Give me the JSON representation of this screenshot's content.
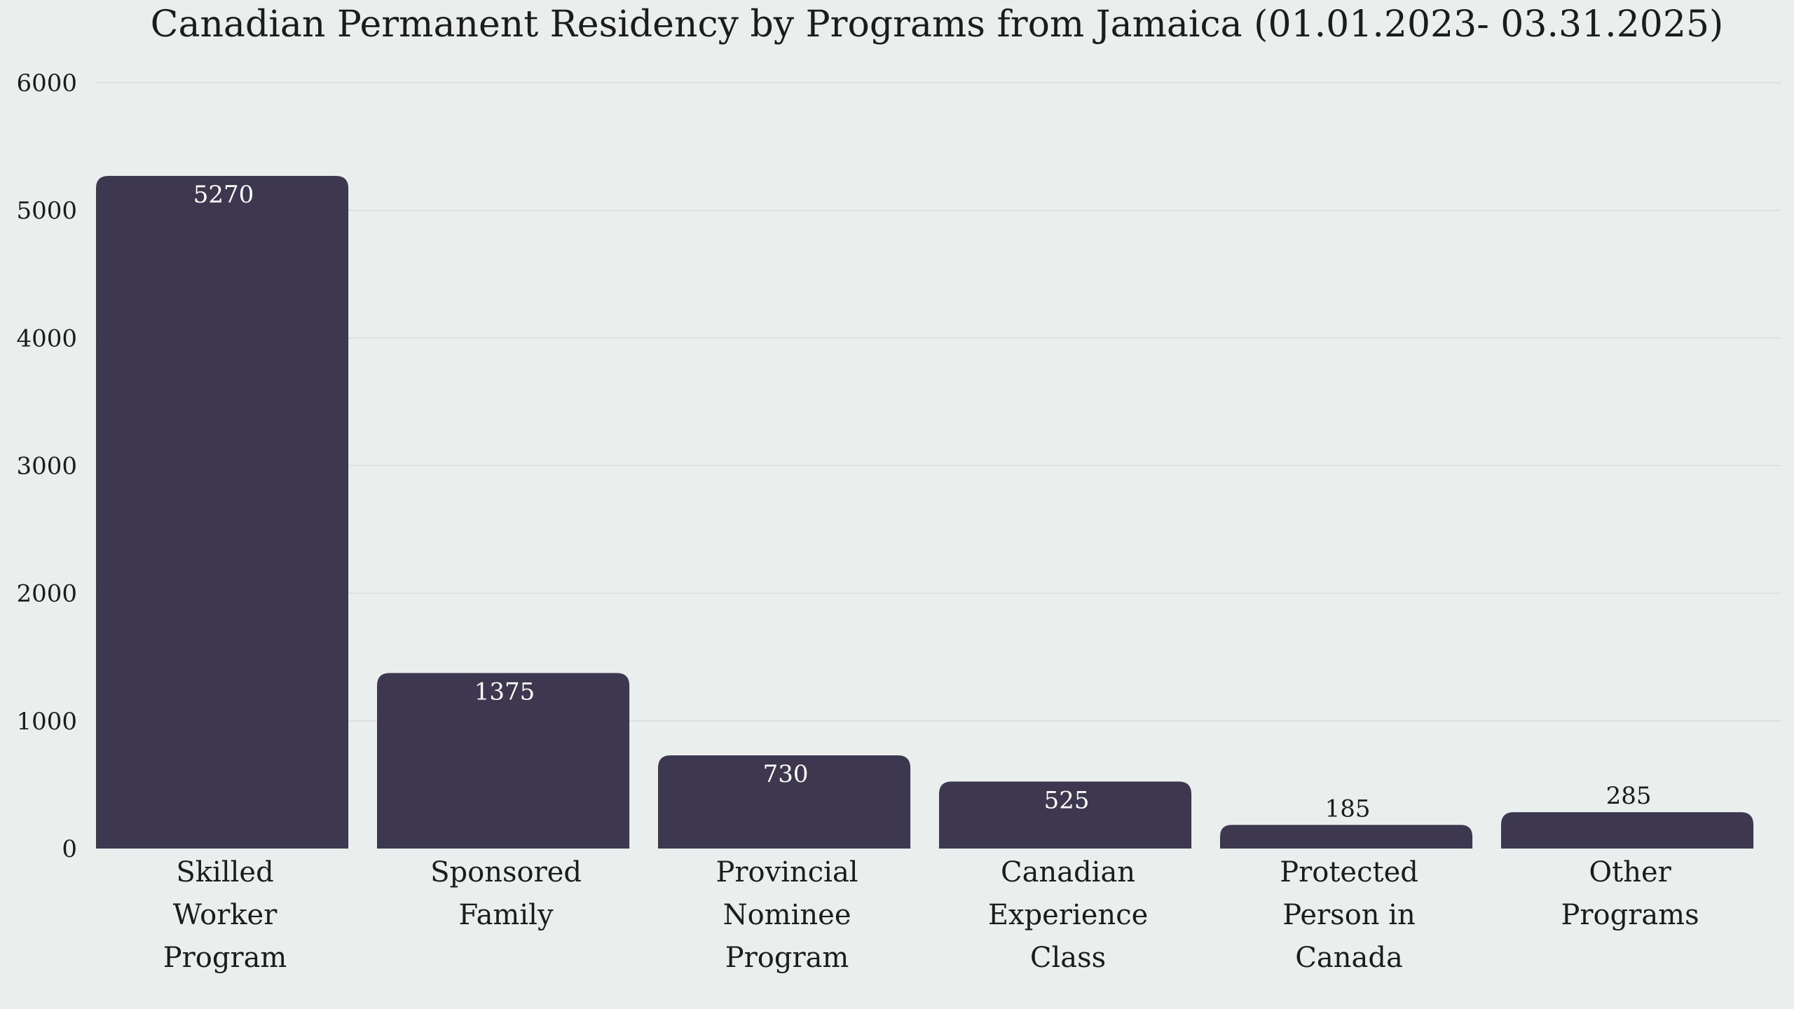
{
  "chart_data": {
    "type": "bar",
    "title": "Canadian Permanent Residency by Programs from Jamaica (01.01.2023- 03.31.2025)",
    "xlabel": "",
    "ylabel": "",
    "categories": [
      "Skilled Worker Program",
      "Sponsored Family",
      "Provincial Nominee Program",
      "Canadian Experience Class",
      "Protected Person in Canada",
      "Other Programs"
    ],
    "category_lines": [
      [
        "Skilled",
        "Worker",
        "Program"
      ],
      [
        "Sponsored",
        "Family"
      ],
      [
        "Provincial",
        "Nominee",
        "Program"
      ],
      [
        "Canadian",
        "Experience",
        "Class"
      ],
      [
        "Protected",
        "Person in",
        "Canada"
      ],
      [
        "Other",
        "Programs"
      ]
    ],
    "values": [
      5270,
      1375,
      730,
      525,
      185,
      285
    ],
    "ylim": [
      0,
      6000
    ],
    "yticks": [
      0,
      1000,
      2000,
      3000,
      4000,
      5000,
      6000
    ],
    "grid": true,
    "legend": "none",
    "colors": {
      "bar": "#3d3850",
      "background": "#eaeeed",
      "label_inside": "#ffffff",
      "label_outside": "#1c1c1c"
    }
  }
}
